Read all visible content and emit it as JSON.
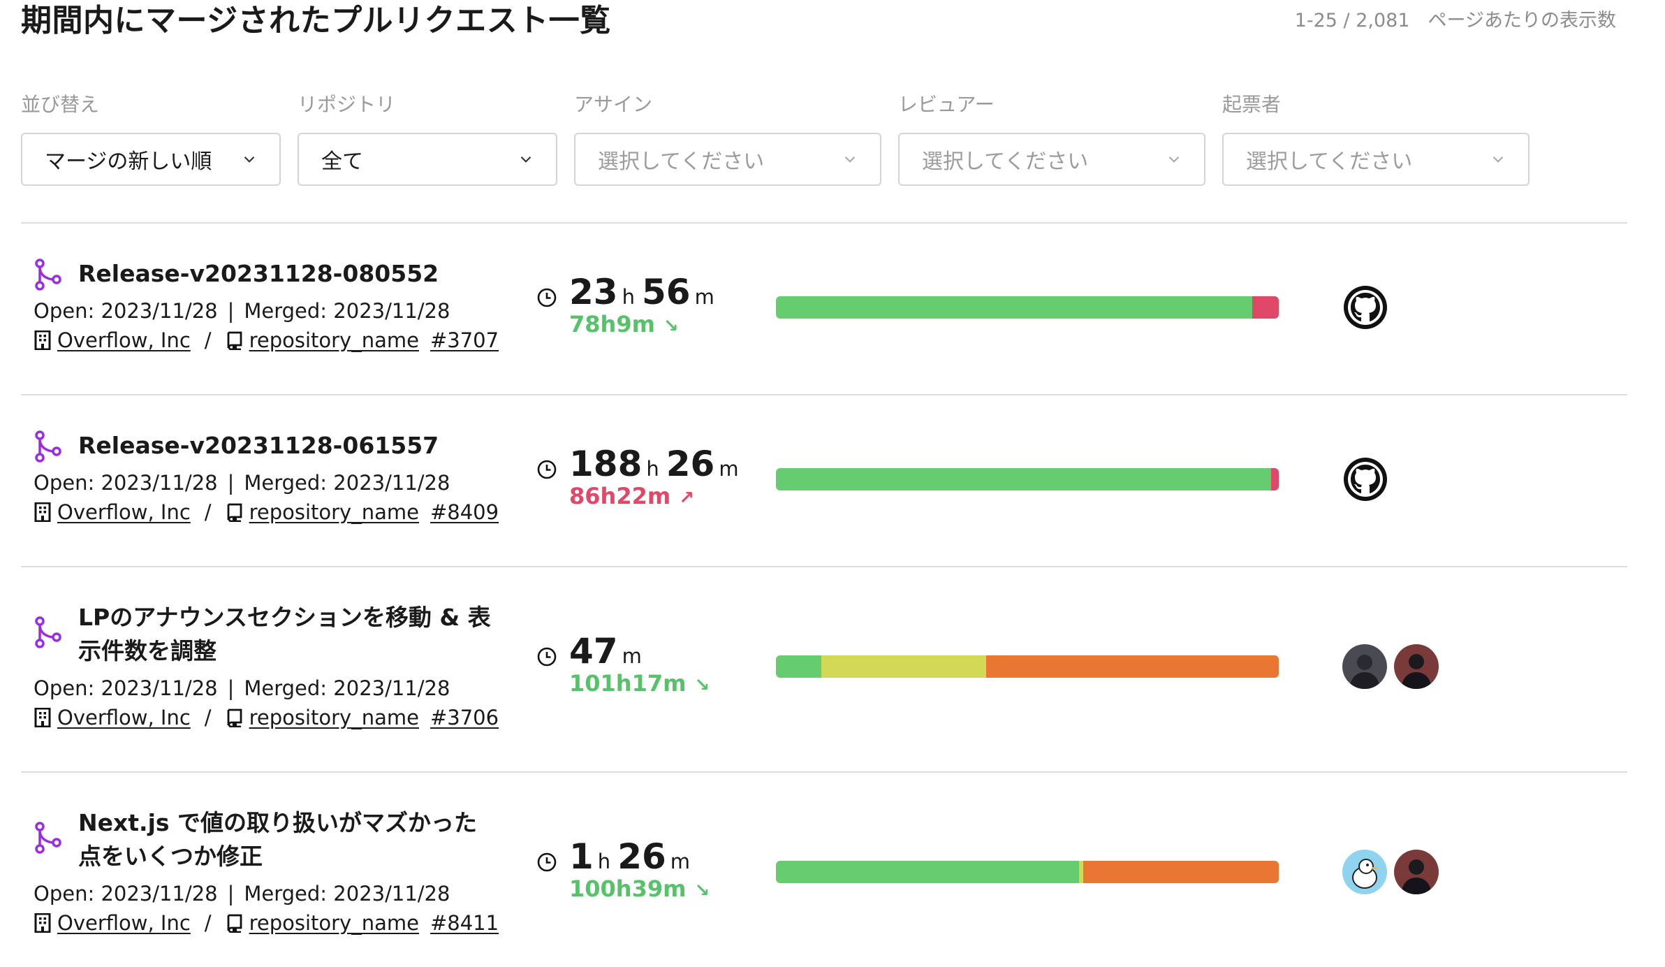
{
  "header": {
    "title": "期間内にマージされたプルリクエスト一覧",
    "range": "1-25 / 2,081",
    "per_page_label": "ページあたりの表示数"
  },
  "filters": {
    "sort": {
      "label": "並び替え",
      "value": "マージの新しい順"
    },
    "repository": {
      "label": "リポジトリ",
      "value": "全て"
    },
    "assignee": {
      "label": "アサイン",
      "placeholder": "選択してください"
    },
    "reviewer": {
      "label": "レビュアー",
      "placeholder": "選択してください"
    },
    "author": {
      "label": "起票者",
      "placeholder": "選択してください"
    }
  },
  "colors": {
    "green": "#65cd6f",
    "red": "#e0486a",
    "yellow": "#d3d957",
    "orange": "#ea7634",
    "purple": "#9c2ce0"
  },
  "pull_requests": [
    {
      "title": "Release-v20231128-080552",
      "open_label": "Open: 2023/11/28",
      "merged_label": "Merged: 2023/11/28",
      "org": "Overflow, Inc",
      "repo": "repository_name",
      "number": "#3707",
      "hours": "23",
      "minutes": "56",
      "delta": "78h9m",
      "delta_trend": "down",
      "bar": [
        {
          "color": "green",
          "fraction": 0.947
        },
        {
          "color": "red",
          "fraction": 0.053
        }
      ],
      "participants": [
        "github-icon"
      ]
    },
    {
      "title": "Release-v20231128-061557",
      "open_label": "Open: 2023/11/28",
      "merged_label": "Merged: 2023/11/28",
      "org": "Overflow, Inc",
      "repo": "repository_name",
      "number": "#8409",
      "hours": "188",
      "minutes": "26",
      "delta": "86h22m",
      "delta_trend": "up",
      "bar": [
        {
          "color": "green",
          "fraction": 0.985
        },
        {
          "color": "red",
          "fraction": 0.015
        }
      ],
      "participants": [
        "github-icon"
      ]
    },
    {
      "title": "LPのアナウンスセクションを移動 & 表示件数を調整",
      "open_label": "Open: 2023/11/28",
      "merged_label": "Merged: 2023/11/28",
      "org": "Overflow, Inc",
      "repo": "repository_name",
      "number": "#3706",
      "hours": "",
      "minutes": "47",
      "delta": "101h17m",
      "delta_trend": "down",
      "bar": [
        {
          "color": "green",
          "fraction": 0.09
        },
        {
          "color": "yellow",
          "fraction": 0.328
        },
        {
          "color": "orange",
          "fraction": 0.582
        }
      ],
      "participants": [
        "avatar-user",
        "avatar-user"
      ]
    },
    {
      "title": "Next.js で値の取り扱いがマズかった点をいくつか修正",
      "open_label": "Open: 2023/11/28",
      "merged_label": "Merged: 2023/11/28",
      "org": "Overflow, Inc",
      "repo": "repository_name",
      "number": "#8411",
      "hours": "1",
      "minutes": "26",
      "delta": "100h39m",
      "delta_trend": "down",
      "bar": [
        {
          "color": "green",
          "fraction": 0.603
        },
        {
          "color": "yellow",
          "fraction": 0.008
        },
        {
          "color": "orange",
          "fraction": 0.389
        }
      ],
      "participants": [
        "avatar-bird",
        "avatar-user"
      ]
    }
  ],
  "units": {
    "hour": "h",
    "minute": "m"
  }
}
